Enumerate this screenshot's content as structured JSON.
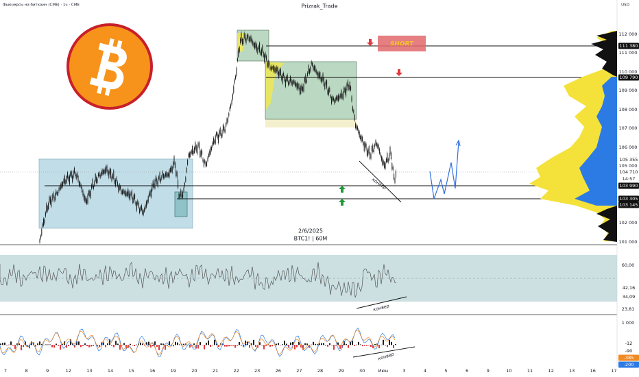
{
  "header": {
    "instrument": "Фьючерсы на биткоин (CME) · 1ч · CME",
    "author": "Prizrak_Trade"
  },
  "price_axis": {
    "currency": "USD",
    "ticks": [
      "112 000",
      "111 000",
      "110 000",
      "109 000",
      "108 000",
      "107 000",
      "106 000",
      "105 000",
      "102 000",
      "101 000"
    ],
    "markers": [
      "111 380",
      "109 790",
      "105 355",
      "104 710",
      "14:57",
      "103 990",
      "103 305",
      "103 145"
    ]
  },
  "annotations": {
    "short": "SHORT",
    "date": "2/6/2025",
    "symbol": "BTC1! | 60M",
    "notes": [
      "конвер",
      "конвер",
      "конвер"
    ]
  },
  "rsi_axis": {
    "ticks": [
      "60,00",
      "23,81"
    ],
    "markers": [
      "42,16",
      "34,09"
    ]
  },
  "macd_axis": {
    "ticks": [
      "1 000"
    ],
    "markers": [
      "-12",
      "-90",
      "-385",
      "-200"
    ]
  },
  "time_axis": {
    "labels": [
      "7",
      "8",
      "9",
      "12",
      "13",
      "14",
      "15",
      "16",
      "19",
      "20",
      "21",
      "22",
      "23",
      "26",
      "27",
      "28",
      "29",
      "30",
      "Июн",
      "3",
      "4",
      "5",
      "6",
      "9",
      "10",
      "11",
      "12",
      "13",
      "16",
      "17"
    ]
  }
}
